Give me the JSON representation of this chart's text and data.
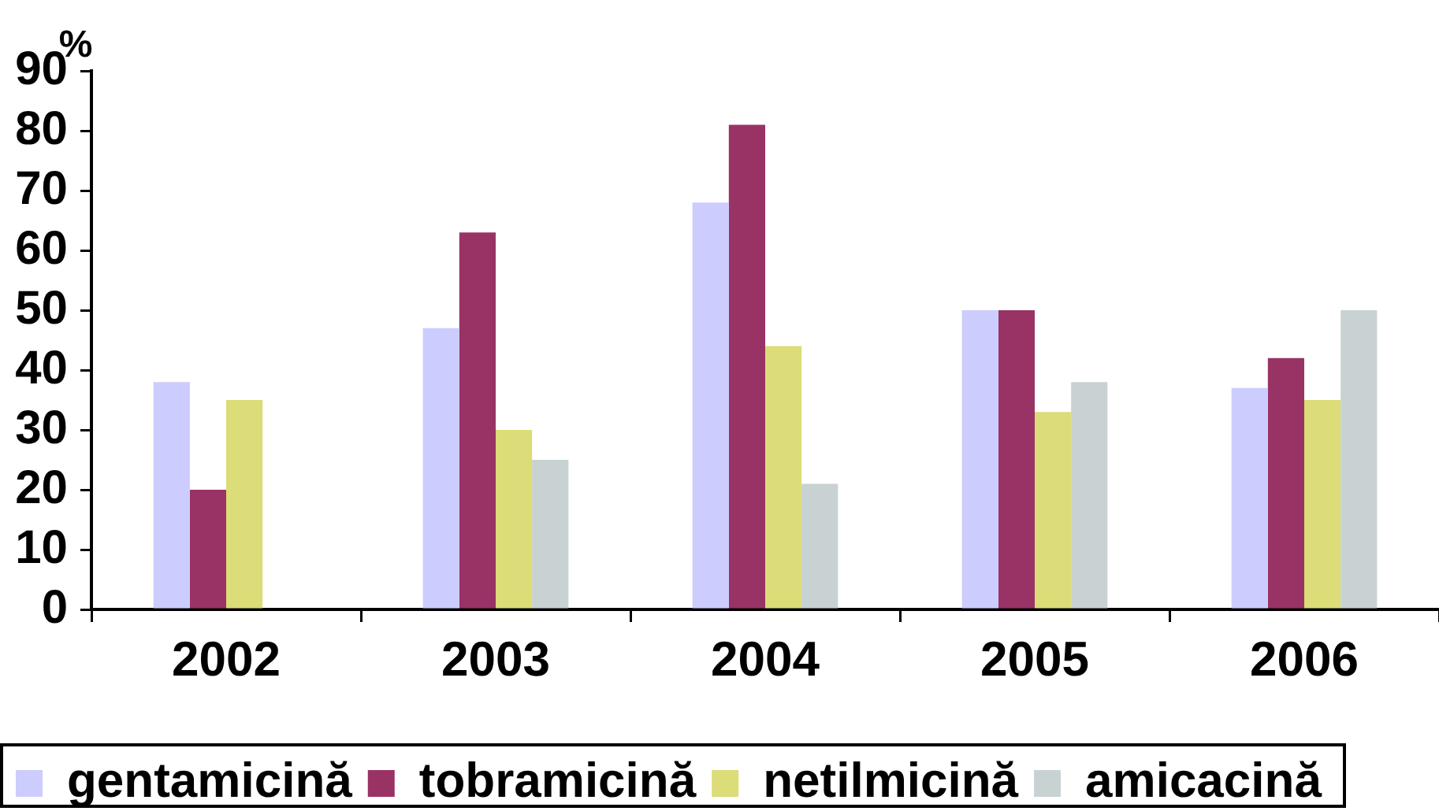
{
  "chart_data": {
    "type": "bar",
    "ylabel": "%",
    "categories": [
      "2002",
      "2003",
      "2004",
      "2005",
      "2006"
    ],
    "series": [
      {
        "name": "gentamicină",
        "color": "#ccccff",
        "values": [
          38,
          47,
          68,
          50,
          37
        ]
      },
      {
        "name": "tobramicină",
        "color": "#993366",
        "values": [
          20,
          63,
          81,
          50,
          42
        ]
      },
      {
        "name": "netilmicină",
        "color": "#dcdc78",
        "values": [
          35,
          30,
          44,
          33,
          35
        ]
      },
      {
        "name": "amicacină",
        "color": "#c8d2d2",
        "values": [
          0,
          25,
          21,
          38,
          50
        ]
      }
    ],
    "ylim": [
      0,
      90
    ],
    "yticks": [
      0,
      10,
      20,
      30,
      40,
      50,
      60,
      70,
      80,
      90
    ],
    "legend": "bottom left"
  }
}
